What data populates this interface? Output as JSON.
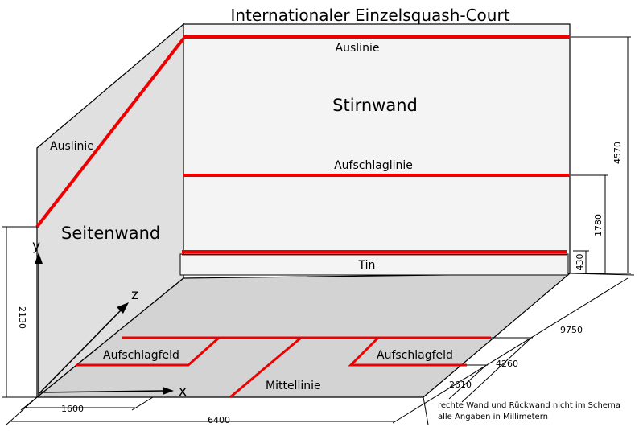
{
  "title": "Internationaler Einzelsquash-Court",
  "walls": {
    "front_wall": "Stirnwand",
    "side_wall": "Seitenwand"
  },
  "lines": {
    "outline_front": "Auslinie",
    "outline_side": "Auslinie",
    "service_line": "Aufschlaglinie",
    "tin": "Tin",
    "service_box_left": "Aufschlagfeld",
    "service_box_right": "Aufschlagfeld",
    "half_court_line": "Mittellinie"
  },
  "axes": {
    "x": "x",
    "y": "y",
    "z": "z"
  },
  "dimensions": {
    "front_height": "4570",
    "service_height": "1780",
    "tin_height": "430",
    "back_height": "2130",
    "length": "9750",
    "short_line_dist": "4260",
    "box_depth": "2610",
    "box_width": "1600",
    "width": "6400"
  },
  "notes": [
    "rechte Wand und Rückwand nicht im Schema",
    "alle Angaben in Millimetern"
  ],
  "colors": {
    "line": "#ee0000",
    "floor": "#d3d3d3",
    "side": "#e0e0e0",
    "front": "#f4f4f4"
  }
}
